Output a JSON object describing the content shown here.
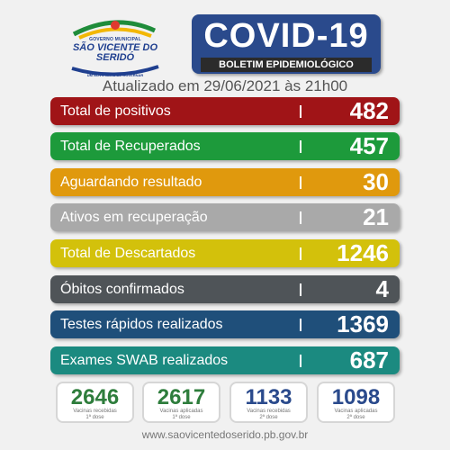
{
  "logo": {
    "gov": "GOVERNO MUNICIPAL",
    "city": "SÃO VICENTE DO SERIDÓ",
    "slogan": "UM NOVO JEITO DE GOVERNAR"
  },
  "header": {
    "title": "COVID-19",
    "subtitle": "BOLETIM EPIDEMIOLÓGICO",
    "updated": "Atualizado em 29/06/2021 às 21h00"
  },
  "rows": [
    {
      "label": "Total de positivos",
      "value": "482",
      "color": "#a01417"
    },
    {
      "label": "Total de Recuperados",
      "value": "457",
      "color": "#1d9a3b"
    },
    {
      "label": "Aguardando resultado",
      "value": "30",
      "color": "#e0990d"
    },
    {
      "label": "Ativos em recuperação",
      "value": "21",
      "color": "#a9a9a9"
    },
    {
      "label": "Total de Descartados",
      "value": "1246",
      "color": "#d3c10b"
    },
    {
      "label": "Óbitos confirmados",
      "value": "4",
      "color": "#4f5458"
    },
    {
      "label": "Testes rápidos realizados",
      "value": "1369",
      "color": "#1f4f7a"
    },
    {
      "label": "Exames SWAB realizados",
      "value": "687",
      "color": "#1b8a80"
    }
  ],
  "vaccines": [
    {
      "value": "2646",
      "caption": "Vacinas recebidas",
      "dose": "1ª dose",
      "color": "#2e7d3c"
    },
    {
      "value": "2617",
      "caption": "Vacinas aplicadas",
      "dose": "1ª dose",
      "color": "#2e7d3c"
    },
    {
      "value": "1133",
      "caption": "Vacinas recebidas",
      "dose": "2ª dose",
      "color": "#2a4a8c"
    },
    {
      "value": "1098",
      "caption": "Vacinas aplicadas",
      "dose": "2ª dose",
      "color": "#2a4a8c"
    }
  ],
  "footer": {
    "website": "www.saovicentedoserido.pb.gov.br"
  }
}
